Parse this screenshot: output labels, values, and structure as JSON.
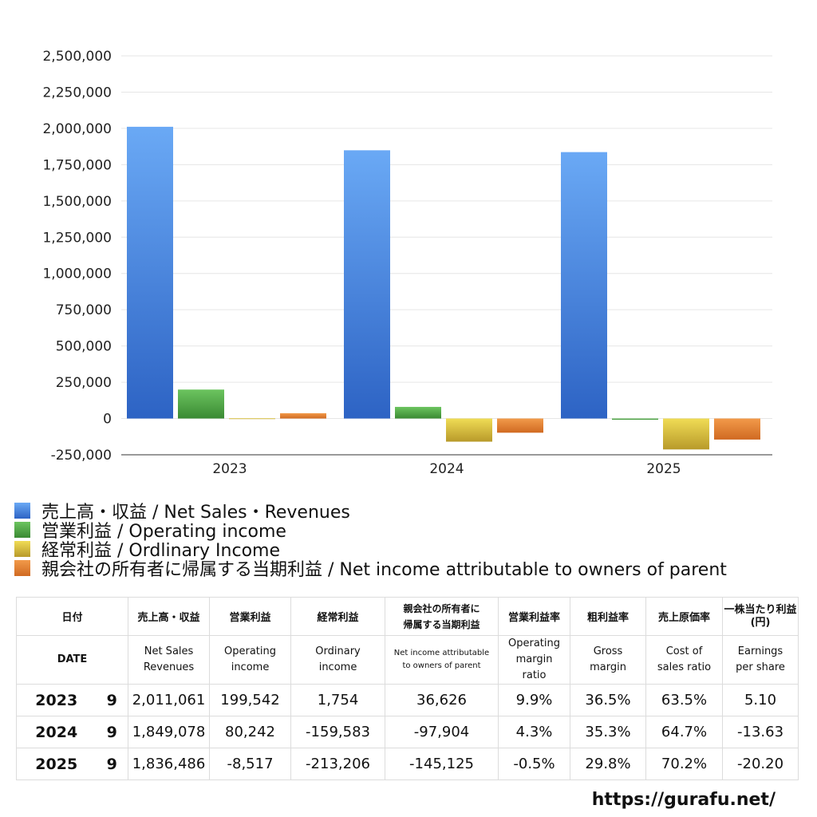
{
  "chart_data": {
    "type": "bar",
    "categories": [
      "2023",
      "2024",
      "2025"
    ],
    "series": [
      {
        "name": "売上高・収益 / Net Sales・Revenues",
        "color": "#3d7fdc",
        "values": [
          2011061,
          1849078,
          1836486
        ]
      },
      {
        "name": "営業利益 / Operating income",
        "color": "#46a13e",
        "values": [
          199542,
          80242,
          -8517
        ]
      },
      {
        "name": "経常利益 / Ordlinary Income",
        "color": "#dcc43e",
        "values": [
          1754,
          -159583,
          -213206
        ]
      },
      {
        "name": "親会社の所有者に帰属する当期利益 / Net income attributable to owners of parent",
        "color": "#e0782a",
        "values": [
          36626,
          -97904,
          -145125
        ]
      }
    ],
    "ylim": [
      -250000,
      2500000
    ],
    "yticks": [
      "2,500,000",
      "2,250,000",
      "2,000,000",
      "1,750,000",
      "1,500,000",
      "1,250,000",
      "1,000,000",
      "750,000",
      "500,000",
      "250,000",
      "0",
      "-250,000"
    ],
    "ytick_values": [
      2500000,
      2250000,
      2000000,
      1750000,
      1500000,
      1250000,
      1000000,
      750000,
      500000,
      250000,
      0,
      -250000
    ],
    "grid": true,
    "legend_position": "bottom-left"
  },
  "table": {
    "header_jp": {
      "date": "日付",
      "sales": "売上高・収益",
      "op": "営業利益",
      "ord": "経常利益",
      "ni_line1": "親会社の所有者に",
      "ni_line2": "帰属する当期利益",
      "opm": "営業利益率",
      "gm": "粗利益率",
      "cos": "売上原価率",
      "eps_line1": "一株当たり利益",
      "eps_line2": "(円)"
    },
    "header_en": {
      "date": "DATE",
      "sales_line1": "Net Sales",
      "sales_line2": "Revenues",
      "op_line1": "Operating",
      "op_line2": "income",
      "ord_line1": "Ordinary",
      "ord_line2": "income",
      "ni_line1": "Net income attributable",
      "ni_line2": "to owners of parent",
      "opm_line1": "Operating",
      "opm_line2": "margin",
      "opm_line3": "ratio",
      "gm_line1": "Gross",
      "gm_line2": "margin",
      "cos_line1": "Cost of",
      "cos_line2": "sales ratio",
      "eps_line1": "Earnings",
      "eps_line2": "per share"
    },
    "rows": [
      {
        "year": "2023",
        "month": "9",
        "sales": "2,011,061",
        "op": "199,542",
        "ord": "1,754",
        "ni": "36,626",
        "opm": "9.9%",
        "gm": "36.5%",
        "cos": "63.5%",
        "eps": "5.10"
      },
      {
        "year": "2024",
        "month": "9",
        "sales": "1,849,078",
        "op": "80,242",
        "ord": "-159,583",
        "ni": "-97,904",
        "opm": "4.3%",
        "gm": "35.3%",
        "cos": "64.7%",
        "eps": "-13.63"
      },
      {
        "year": "2025",
        "month": "9",
        "sales": "1,836,486",
        "op": "-8,517",
        "ord": "-213,206",
        "ni": "-145,125",
        "opm": "-0.5%",
        "gm": "29.8%",
        "cos": "70.2%",
        "eps": "-20.20"
      }
    ]
  },
  "footer": {
    "site": "https://gurafu.net/"
  }
}
